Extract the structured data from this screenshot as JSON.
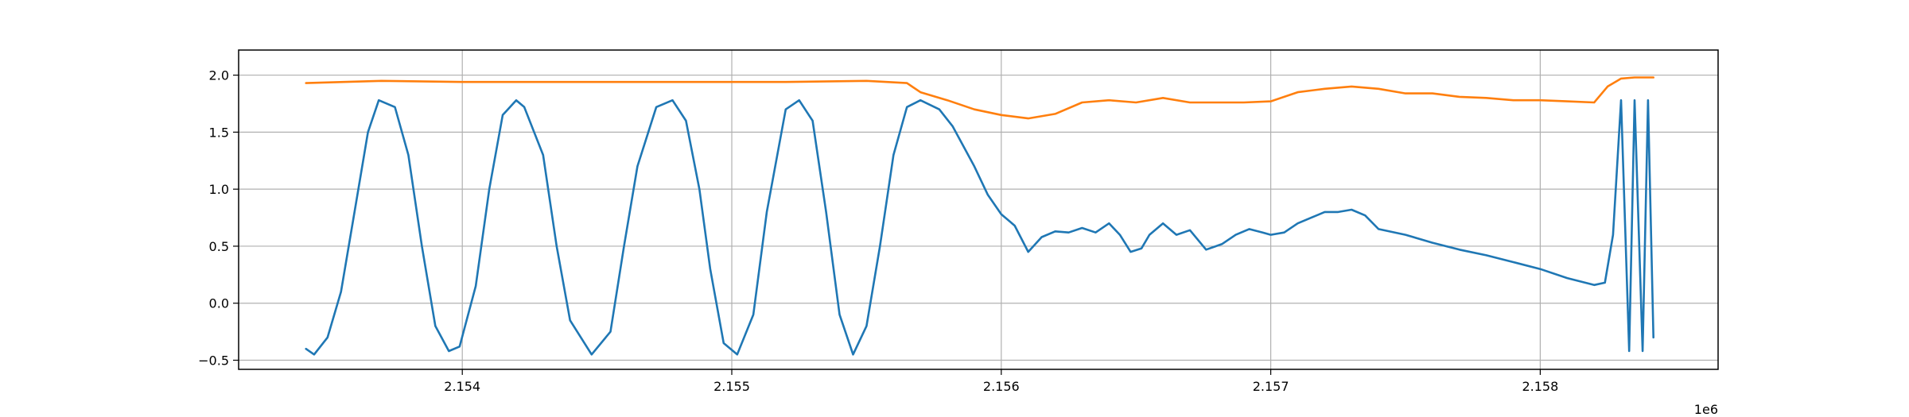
{
  "chart_data": {
    "type": "line",
    "title": "",
    "xlabel": "",
    "ylabel": "",
    "grid": true,
    "legend": "none",
    "x_offset_label": "1e6",
    "xlim": [
      2153170,
      2158660
    ],
    "ylim": [
      -0.58,
      2.22
    ],
    "x_ticks": [
      {
        "value": 2154000,
        "label": "2.154"
      },
      {
        "value": 2155000,
        "label": "2.155"
      },
      {
        "value": 2156000,
        "label": "2.156"
      },
      {
        "value": 2157000,
        "label": "2.157"
      },
      {
        "value": 2158000,
        "label": "2.158"
      }
    ],
    "y_ticks": [
      {
        "value": -0.5,
        "label": "−0.5"
      },
      {
        "value": 0.0,
        "label": "0.0"
      },
      {
        "value": 0.5,
        "label": "0.5"
      },
      {
        "value": 1.0,
        "label": "1.0"
      },
      {
        "value": 1.5,
        "label": "1.5"
      },
      {
        "value": 2.0,
        "label": "2.0"
      }
    ],
    "series": [
      {
        "color": "#1f77b4",
        "x": [
          2153420,
          2153450,
          2153500,
          2153550,
          2153600,
          2153650,
          2153690,
          2153750,
          2153800,
          2153850,
          2153900,
          2153950,
          2153990,
          2154050,
          2154100,
          2154150,
          2154200,
          2154230,
          2154300,
          2154350,
          2154400,
          2154480,
          2154550,
          2154600,
          2154650,
          2154720,
          2154780,
          2154830,
          2154880,
          2154920,
          2154970,
          2155020,
          2155080,
          2155130,
          2155200,
          2155250,
          2155300,
          2155350,
          2155400,
          2155450,
          2155500,
          2155550,
          2155600,
          2155650,
          2155700,
          2155770,
          2155820,
          2155900,
          2155950,
          2156000,
          2156050,
          2156100,
          2156150,
          2156200,
          2156250,
          2156300,
          2156350,
          2156400,
          2156440,
          2156480,
          2156520,
          2156550,
          2156600,
          2156650,
          2156700,
          2156760,
          2156820,
          2156870,
          2156920,
          2156970,
          2157000,
          2157050,
          2157100,
          2157150,
          2157200,
          2157250,
          2157300,
          2157350,
          2157400,
          2157500,
          2157600,
          2157700,
          2157800,
          2157900,
          2158000,
          2158100,
          2158200,
          2158240,
          2158270,
          2158300,
          2158330,
          2158350,
          2158380,
          2158400,
          2158420
        ],
        "y": [
          -0.4,
          -0.45,
          -0.3,
          0.1,
          0.8,
          1.5,
          1.78,
          1.72,
          1.3,
          0.5,
          -0.2,
          -0.42,
          -0.38,
          0.15,
          1.0,
          1.65,
          1.78,
          1.72,
          1.3,
          0.5,
          -0.15,
          -0.45,
          -0.25,
          0.5,
          1.2,
          1.72,
          1.78,
          1.6,
          1.0,
          0.3,
          -0.35,
          -0.45,
          -0.1,
          0.8,
          1.7,
          1.78,
          1.6,
          0.8,
          -0.1,
          -0.45,
          -0.2,
          0.5,
          1.3,
          1.72,
          1.78,
          1.7,
          1.55,
          1.2,
          0.95,
          0.78,
          0.68,
          0.45,
          0.58,
          0.63,
          0.62,
          0.66,
          0.62,
          0.7,
          0.6,
          0.45,
          0.48,
          0.6,
          0.7,
          0.6,
          0.64,
          0.47,
          0.52,
          0.6,
          0.65,
          0.62,
          0.6,
          0.62,
          0.7,
          0.75,
          0.8,
          0.8,
          0.82,
          0.77,
          0.65,
          0.6,
          0.53,
          0.47,
          0.42,
          0.36,
          0.3,
          0.22,
          0.16,
          0.18,
          0.6,
          1.78,
          -0.42,
          1.78,
          -0.42,
          1.78,
          -0.3
        ]
      },
      {
        "color": "#ff7f0e",
        "x": [
          2153420,
          2153700,
          2154000,
          2154300,
          2154600,
          2154900,
          2155200,
          2155500,
          2155650,
          2155700,
          2155800,
          2155900,
          2156000,
          2156100,
          2156200,
          2156300,
          2156400,
          2156500,
          2156600,
          2156700,
          2156800,
          2156900,
          2157000,
          2157100,
          2157200,
          2157300,
          2157400,
          2157500,
          2157600,
          2157700,
          2157800,
          2157900,
          2158000,
          2158100,
          2158200,
          2158250,
          2158300,
          2158350,
          2158420
        ],
        "y": [
          1.93,
          1.95,
          1.94,
          1.94,
          1.94,
          1.94,
          1.94,
          1.95,
          1.93,
          1.85,
          1.78,
          1.7,
          1.65,
          1.62,
          1.66,
          1.76,
          1.78,
          1.76,
          1.8,
          1.76,
          1.76,
          1.76,
          1.77,
          1.85,
          1.88,
          1.9,
          1.88,
          1.84,
          1.84,
          1.81,
          1.8,
          1.78,
          1.78,
          1.77,
          1.76,
          1.9,
          1.97,
          1.98,
          1.98
        ]
      }
    ]
  }
}
